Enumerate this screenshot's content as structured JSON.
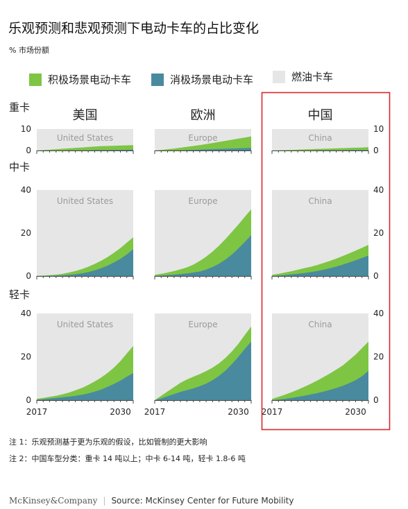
{
  "title": "乐观预测和悲观预测下电动卡车的占比变化",
  "subtitle": "% 市场份额",
  "legend": [
    {
      "label": "积极场景电动卡车",
      "color": "#7ec544"
    },
    {
      "label": "消极场景电动卡车",
      "color": "#4a8a9e"
    },
    {
      "label": "燃油卡车",
      "color": "#e6e6e6"
    }
  ],
  "notes": [
    "注 1：乐观预测基于更为乐观的假设，比如管制的更大影响",
    "注 2：中国车型分类：重卡 14 吨以上；中卡 6-14 吨，轻卡 1.8-6 吨"
  ],
  "footer": {
    "brand": "McKinsey&Company",
    "separator": "|",
    "source": "Source: McKinsey Center for Future Mobility"
  },
  "highlight_color": "#d9262b",
  "chart_data": {
    "type": "area",
    "x_start": 2017,
    "x_end": 2032,
    "x_tick_labels": [
      {
        "value": 2017,
        "label": "2017"
      },
      {
        "value": 2030,
        "label": "2030"
      }
    ],
    "regions": [
      {
        "name": "美国",
        "watermark": "United States"
      },
      {
        "name": "欧洲",
        "watermark": "Europe"
      },
      {
        "name": "中国",
        "watermark": "China"
      }
    ],
    "rows": [
      {
        "name": "重卡",
        "ylim": [
          0,
          10
        ],
        "ticks": [
          "10",
          "0"
        ]
      },
      {
        "name": "中卡",
        "ylim": [
          0,
          40
        ],
        "ticks": [
          "40",
          "20",
          "0"
        ]
      },
      {
        "name": "轻卡",
        "ylim": [
          0,
          40
        ],
        "ticks": [
          "40",
          "20",
          "0"
        ]
      }
    ],
    "series": [
      {
        "name": "积极场景电动卡车",
        "color": "#7ec544",
        "panels": [
          [
            {
              "x": 2017,
              "y": [
                0,
                0.2,
                0.4,
                0.6,
                0.8,
                1.0,
                1.2,
                1.4,
                1.6,
                1.8,
                2.0,
                2.1,
                2.2,
                2.3,
                2.4,
                2.5
              ]
            },
            {
              "x": 2017,
              "y": [
                0,
                0.3,
                0.6,
                0.9,
                1.3,
                1.7,
                2.1,
                2.5,
                3.0,
                3.5,
                4.0,
                4.5,
                5.0,
                5.5,
                6.0,
                6.5
              ]
            },
            {
              "x": 2017,
              "y": [
                0,
                0.1,
                0.2,
                0.3,
                0.4,
                0.5,
                0.6,
                0.7,
                0.8,
                0.9,
                1.0,
                1.1,
                1.2,
                1.3,
                1.4,
                1.5
              ]
            }
          ],
          [
            {
              "x": 2017,
              "y": [
                0.1,
                0.2,
                0.4,
                0.6,
                1.0,
                1.6,
                2.3,
                3.2,
                4.3,
                5.6,
                7.1,
                8.8,
                10.8,
                13.0,
                15.5,
                18.0
              ]
            },
            {
              "x": 2017,
              "y": [
                0.5,
                1.0,
                1.6,
                2.3,
                3.1,
                4.0,
                5.3,
                7.0,
                9.0,
                11.4,
                14.1,
                17.2,
                20.5,
                23.9,
                27.5,
                31.0
              ]
            },
            {
              "x": 2017,
              "y": [
                0.5,
                1.0,
                1.6,
                2.2,
                2.9,
                3.6,
                4.3,
                5.1,
                6.0,
                7.0,
                8.1,
                9.3,
                10.5,
                11.8,
                13.1,
                14.5
              ]
            }
          ],
          [
            {
              "x": 2017,
              "y": [
                0.6,
                1.0,
                1.5,
                2.0,
                2.7,
                3.5,
                4.5,
                5.6,
                7.0,
                8.6,
                10.4,
                12.5,
                15.0,
                18.0,
                21.5,
                25.0
              ]
            },
            {
              "x": 2017,
              "y": [
                0.0,
                2.0,
                4.0,
                6.0,
                8.0,
                9.5,
                10.8,
                12.0,
                13.4,
                15.0,
                17.0,
                19.5,
                22.5,
                26.0,
                30.0,
                34.0
              ]
            },
            {
              "x": 2017,
              "y": [
                0.5,
                1.5,
                2.5,
                3.6,
                4.8,
                6.1,
                7.5,
                9.0,
                10.6,
                12.3,
                14.1,
                16.0,
                18.5,
                21.0,
                24.0,
                27.0
              ]
            }
          ]
        ]
      },
      {
        "name": "消极场景电动卡车",
        "color": "#4a8a9e",
        "panels": [
          [
            {
              "x": 2017,
              "y": [
                0,
                0,
                0,
                0,
                0,
                0.1,
                0.1,
                0.1,
                0.1,
                0.2,
                0.2,
                0.2,
                0.3,
                0.3,
                0.3,
                0.4
              ]
            },
            {
              "x": 2017,
              "y": [
                0,
                0,
                0,
                0.1,
                0.1,
                0.2,
                0.3,
                0.4,
                0.5,
                0.6,
                0.7,
                0.8,
                0.9,
                1.0,
                1.1,
                1.2
              ]
            },
            {
              "x": 2017,
              "y": [
                0,
                0,
                0,
                0,
                0,
                0,
                0,
                0.1,
                0.1,
                0.1,
                0.1,
                0.1,
                0.2,
                0.2,
                0.2,
                0.2
              ]
            }
          ],
          [
            {
              "x": 2017,
              "y": [
                0,
                0,
                0.1,
                0.2,
                0.3,
                0.5,
                0.8,
                1.2,
                1.8,
                2.6,
                3.6,
                4.8,
                6.3,
                8.0,
                10.0,
                12.5
              ]
            },
            {
              "x": 2017,
              "y": [
                0.0,
                0.2,
                0.4,
                0.6,
                0.9,
                1.2,
                1.6,
                2.1,
                3.0,
                4.2,
                5.7,
                7.6,
                10.0,
                12.8,
                15.8,
                19.0
              ]
            },
            {
              "x": 2017,
              "y": [
                0.0,
                0.2,
                0.4,
                0.7,
                1.0,
                1.4,
                1.8,
                2.3,
                2.9,
                3.6,
                4.4,
                5.3,
                6.3,
                7.3,
                8.4,
                9.5
              ]
            }
          ],
          [
            {
              "x": 2017,
              "y": [
                0.2,
                0.4,
                0.7,
                1.0,
                1.3,
                1.6,
                2.0,
                2.5,
                3.1,
                3.9,
                4.9,
                6.1,
                7.5,
                9.0,
                10.8,
                12.5
              ]
            },
            {
              "x": 2017,
              "y": [
                0.0,
                0.8,
                1.8,
                2.8,
                3.8,
                4.6,
                5.4,
                6.4,
                7.6,
                9.2,
                11.2,
                13.6,
                16.6,
                20.0,
                23.6,
                27.0
              ]
            },
            {
              "x": 2017,
              "y": [
                0.0,
                0.3,
                0.6,
                1.0,
                1.5,
                2.0,
                2.6,
                3.2,
                3.9,
                4.7,
                5.6,
                6.6,
                7.8,
                9.2,
                11.0,
                13.5
              ]
            }
          ]
        ]
      }
    ]
  }
}
